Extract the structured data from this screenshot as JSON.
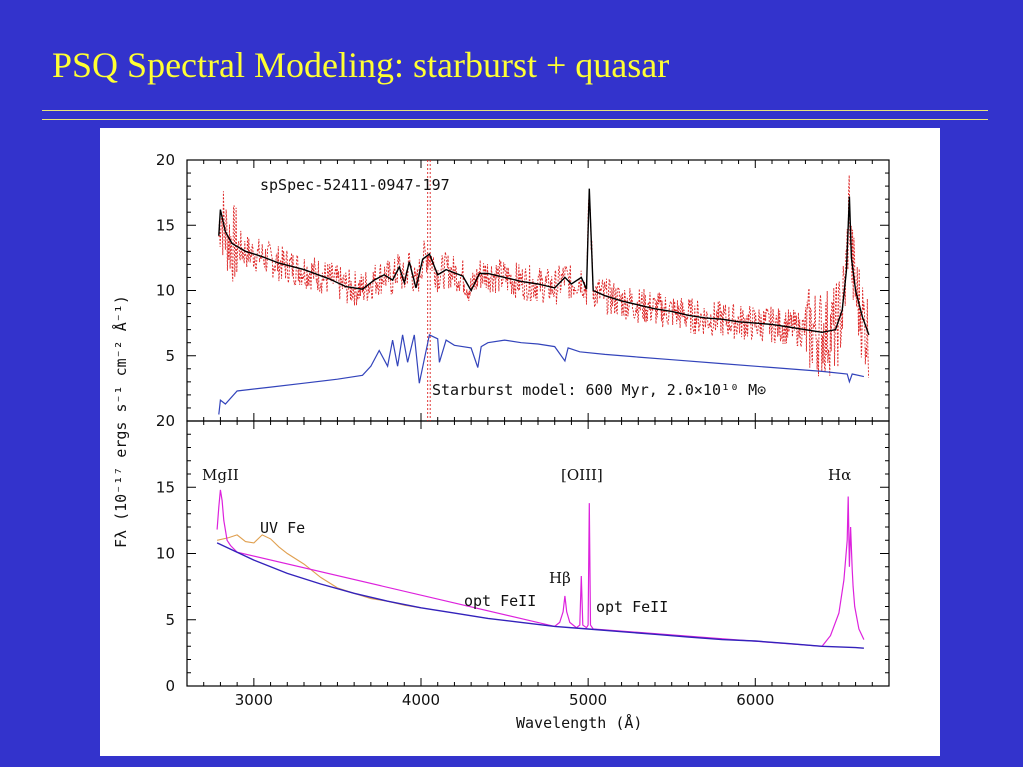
{
  "slide": {
    "title": "PSQ Spectral Modeling: starburst + quasar",
    "background": "#3333cc",
    "title_color": "#ffff33"
  },
  "chart_data": [
    {
      "type": "line",
      "panel": "top",
      "annotations": [
        "spSpec-52411-0947-197",
        "Starburst model: 600 Myr, 2.0×10¹⁰ M⊙"
      ],
      "ylabel": "Fλ (10⁻¹⁷ ergs s⁻¹ cm⁻² Å⁻¹)",
      "xlim": [
        2600,
        6800
      ],
      "ylim": [
        0,
        20
      ],
      "yticks": [
        "20",
        "15",
        "10",
        "5"
      ],
      "colors": {
        "observed": "#dd2222",
        "fit": "#000000",
        "starburst": "#3344bb"
      },
      "series": [
        {
          "x": [
            2790,
            2800,
            2830,
            2870,
            2950,
            3050,
            3150,
            3300,
            3450,
            3550,
            3650,
            3720,
            3780,
            3830,
            3870,
            3900,
            3930,
            3970,
            4010,
            4050,
            4100,
            4150,
            4250,
            4300,
            4350,
            4400,
            4500,
            4600,
            4700,
            4800,
            4861,
            4900,
            4959,
            4990,
            5007,
            5030,
            5100,
            5200,
            5300,
            5400,
            5500,
            5600,
            5700,
            5800,
            5900,
            6000,
            6100,
            6200,
            6300,
            6400,
            6480,
            6520,
            6545,
            6563,
            6575,
            6600,
            6640,
            6680
          ],
          "values": [
            14.2,
            16.2,
            14.5,
            13.6,
            13.0,
            12.6,
            12.1,
            11.6,
            10.9,
            10.3,
            10.1,
            10.8,
            11.2,
            10.8,
            11.8,
            10.6,
            12.2,
            10.2,
            12.4,
            12.8,
            11.2,
            11.6,
            11.1,
            10.0,
            11.3,
            11.3,
            11.0,
            10.7,
            10.5,
            10.2,
            11.0,
            10.5,
            11.0,
            10.1,
            17.8,
            10.0,
            9.6,
            9.2,
            8.9,
            8.6,
            8.4,
            8.1,
            7.9,
            7.8,
            7.6,
            7.5,
            7.4,
            7.2,
            7.0,
            6.8,
            7.0,
            8.5,
            11.5,
            17.2,
            12.5,
            10.0,
            8.0,
            6.6
          ]
        },
        {
          "name": "Starburst model: 600 Myr, 2.0×10¹⁰ M⊙",
          "x": [
            2790,
            2800,
            2830,
            2900,
            3100,
            3300,
            3500,
            3650,
            3700,
            3750,
            3800,
            3830,
            3860,
            3890,
            3920,
            3960,
            3990,
            4050,
            4100,
            4110,
            4150,
            4200,
            4300,
            4340,
            4360,
            4400,
            4500,
            4600,
            4700,
            4800,
            4861,
            4880,
            4950,
            5100,
            5300,
            5500,
            5800,
            6100,
            6400,
            6550,
            6563,
            6580,
            6650
          ],
          "values": [
            0.5,
            1.6,
            1.3,
            2.3,
            2.6,
            2.9,
            3.2,
            3.5,
            4.2,
            5.4,
            4.2,
            6.2,
            4.2,
            6.6,
            4.5,
            6.6,
            2.9,
            6.6,
            6.3,
            4.5,
            6.2,
            5.8,
            5.6,
            4.1,
            5.7,
            6.0,
            6.2,
            6.0,
            5.9,
            5.7,
            4.6,
            5.6,
            5.3,
            5.1,
            4.9,
            4.7,
            4.4,
            4.1,
            3.8,
            3.6,
            3.0,
            3.6,
            3.4
          ]
        }
      ]
    },
    {
      "type": "line",
      "panel": "bottom",
      "xlabel": "Wavelength (Å)",
      "ylabel": "Fλ (10⁻¹⁷ ergs s⁻¹ cm⁻² Å⁻¹)",
      "xlim": [
        2600,
        6800
      ],
      "ylim": [
        0,
        20
      ],
      "xticks": [
        "3000",
        "4000",
        "5000",
        "6000"
      ],
      "yticks": [
        "20",
        "15",
        "10",
        "5",
        "0"
      ],
      "annotations": [
        "MgII",
        "UV Fe",
        "Hβ",
        "opt FeII",
        "[OIII]",
        "opt FeII",
        "Hα"
      ],
      "colors": {
        "continuum": "#3322bb",
        "fe": "#e0a050",
        "lines": "#dd22dd"
      },
      "series": [
        {
          "x": [
            2780,
            2900,
            3000,
            3200,
            3400,
            3600,
            3800,
            4000,
            4200,
            4400,
            4600,
            4800,
            5000,
            5200,
            5400,
            5600,
            5800,
            6000,
            6200,
            6400,
            6600,
            6650
          ],
          "values": [
            10.8,
            10.1,
            9.5,
            8.5,
            7.7,
            7.0,
            6.4,
            5.9,
            5.5,
            5.1,
            4.8,
            4.5,
            4.3,
            4.1,
            3.9,
            3.7,
            3.5,
            3.4,
            3.2,
            3.0,
            2.9,
            2.85
          ]
        },
        {
          "x": [
            2780,
            2850,
            2900,
            2950,
            3000,
            3050,
            3100,
            3150,
            3200,
            3300,
            3400,
            3500,
            3600,
            3700,
            3800,
            3900,
            4000
          ],
          "values": [
            11.0,
            11.2,
            11.4,
            10.9,
            10.8,
            11.4,
            11.1,
            10.5,
            10.0,
            9.2,
            8.2,
            7.4,
            7.0,
            6.6,
            6.4,
            6.1,
            5.9
          ]
        },
        {
          "x": [
            2780,
            2790,
            2800,
            2810,
            2820,
            2840,
            2860,
            2900,
            4800,
            4830,
            4850,
            4861,
            4872,
            4890,
            4930,
            4950,
            4959,
            4968,
            4990,
            5000,
            5007,
            5014,
            5030,
            6400,
            6450,
            6500,
            6530,
            6550,
            6556,
            6563,
            6570,
            6580,
            6585,
            6595,
            6620,
            6650
          ],
          "values": [
            11.8,
            13.5,
            14.8,
            14.0,
            12.5,
            11.0,
            10.6,
            10.1,
            4.5,
            4.8,
            5.6,
            6.8,
            5.6,
            4.8,
            4.4,
            4.6,
            8.3,
            4.6,
            4.4,
            4.6,
            13.8,
            4.6,
            4.3,
            3.0,
            3.8,
            5.5,
            8.0,
            11.0,
            14.3,
            9.0,
            12.0,
            8.8,
            7.5,
            6.0,
            4.3,
            3.5
          ]
        }
      ]
    }
  ]
}
